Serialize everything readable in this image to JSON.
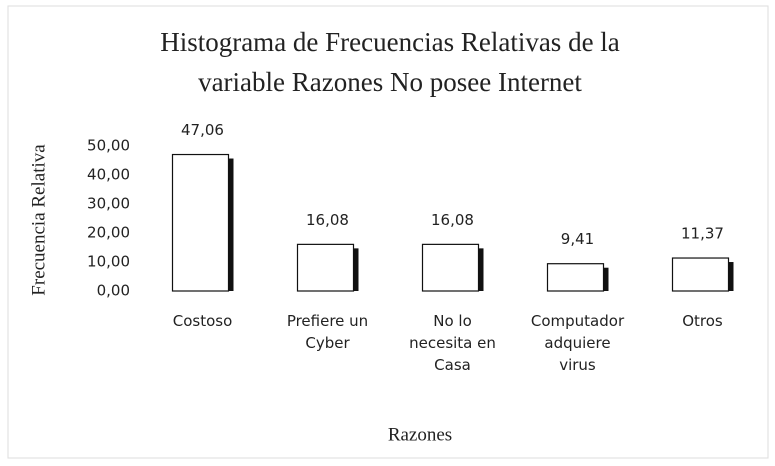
{
  "chart_data": {
    "type": "bar",
    "title": [
      "Histograma de Frecuencias Relativas de la",
      "variable Razones No posee Internet"
    ],
    "x_label": "Razones",
    "y_label": "Frecuencia Relativa",
    "categories": [
      "Costoso",
      "Prefiere un Cyber",
      "No lo necesita en Casa",
      "Computador adquiere virus",
      "Otros"
    ],
    "values": [
      47.06,
      16.08,
      16.08,
      9.41,
      11.37
    ],
    "value_labels": [
      "47,06",
      "16,08",
      "16,08",
      "9,41",
      "11,37"
    ],
    "color": "#ffffff",
    "ylim": [
      0,
      50
    ],
    "yticks": [
      {
        "value": 0,
        "label": "0,00"
      },
      {
        "value": 10,
        "label": "10,00"
      },
      {
        "value": 20,
        "label": "20,00"
      },
      {
        "value": 30,
        "label": "30,00"
      },
      {
        "value": 40,
        "label": "40,00"
      },
      {
        "value": 50,
        "label": "50,00"
      }
    ],
    "grid": false
  }
}
